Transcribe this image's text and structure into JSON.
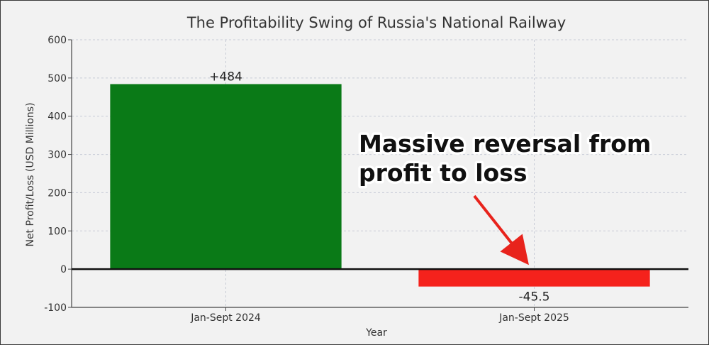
{
  "chart_data": {
    "type": "bar",
    "title": "The Profitability Swing of Russia's National Railway",
    "xlabel": "Year",
    "ylabel": "Net Profit/Loss (USD Millions)",
    "ylim": [
      -100,
      600
    ],
    "yticks": [
      -100,
      0,
      100,
      200,
      300,
      400,
      500,
      600
    ],
    "grid": true,
    "categories": [
      "Jan-Sept 2024",
      "Jan-Sept 2025"
    ],
    "values": [
      484,
      -45.5
    ],
    "data_labels": [
      "+484",
      "-45.5"
    ],
    "colors": [
      "#0a7a17",
      "#f5221c"
    ],
    "annotation": {
      "lines": [
        "Massive reversal from",
        "profit to loss"
      ],
      "points_to": "Jan-Sept 2025",
      "arrow_color": "#e8231c"
    }
  }
}
